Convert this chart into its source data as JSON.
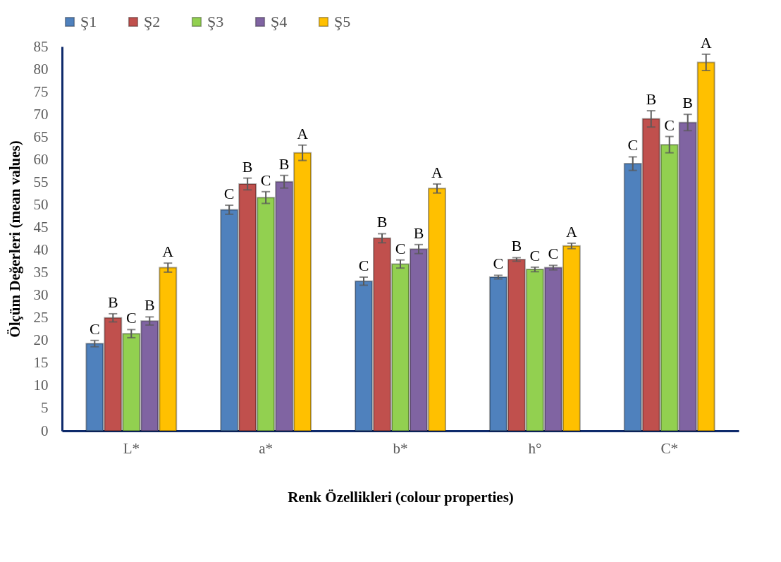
{
  "chart_data": {
    "type": "bar",
    "xlabel": "Renk Özellikleri (colour properties)",
    "ylabel": "Ölçüm Değerleri (mean values)",
    "categories": [
      "L*",
      "a*",
      "b*",
      "h°",
      "C*"
    ],
    "ylim": [
      0,
      85
    ],
    "yticks": [
      0,
      5,
      10,
      15,
      20,
      25,
      30,
      35,
      40,
      45,
      50,
      55,
      60,
      65,
      70,
      75,
      80,
      85
    ],
    "grid": false,
    "legend": "top",
    "series": [
      {
        "name": "Ş1",
        "color": "#4f81bd",
        "values": [
          19.3,
          48.9,
          33.1,
          34.0,
          59.1
        ],
        "errors": [
          0.7,
          1.0,
          0.9,
          0.4,
          1.5
        ],
        "value_labels": [
          "C",
          "C",
          "C",
          "C",
          "C"
        ]
      },
      {
        "name": "Ş2",
        "color": "#c0504d",
        "values": [
          25.0,
          54.6,
          42.6,
          37.9,
          69.0
        ],
        "errors": [
          0.9,
          1.3,
          1.0,
          0.4,
          1.8
        ],
        "value_labels": [
          "B",
          "B",
          "B",
          "B",
          "B"
        ]
      },
      {
        "name": "Ş3",
        "color": "#92d050",
        "values": [
          21.5,
          51.6,
          36.9,
          35.7,
          63.3
        ],
        "errors": [
          0.9,
          1.3,
          0.9,
          0.5,
          1.8
        ],
        "value_labels": [
          "C",
          "C",
          "C",
          "C",
          "C"
        ]
      },
      {
        "name": "Ş4",
        "color": "#8064a2",
        "values": [
          24.3,
          55.1,
          40.2,
          36.1,
          68.2
        ],
        "errors": [
          0.9,
          1.4,
          1.0,
          0.5,
          1.8
        ],
        "value_labels": [
          "B",
          "B",
          "B",
          "C",
          "B"
        ]
      },
      {
        "name": "Ş5",
        "color": "#ffc000",
        "values": [
          36.1,
          61.5,
          53.6,
          40.9,
          81.5
        ],
        "errors": [
          1.0,
          1.7,
          1.0,
          0.6,
          1.8
        ],
        "value_labels": [
          "A",
          "A",
          "A",
          "A",
          "A"
        ]
      }
    ]
  }
}
